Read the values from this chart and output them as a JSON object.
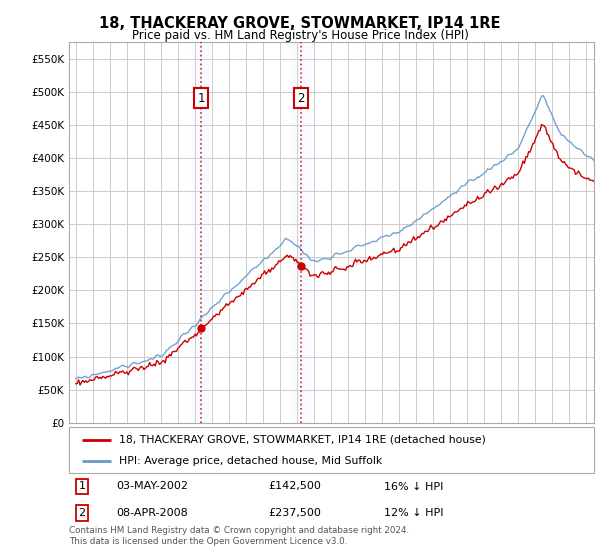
{
  "title": "18, THACKERAY GROVE, STOWMARKET, IP14 1RE",
  "subtitle": "Price paid vs. HM Land Registry's House Price Index (HPI)",
  "ylim": [
    0,
    575000
  ],
  "yticks": [
    0,
    50000,
    100000,
    150000,
    200000,
    250000,
    300000,
    350000,
    400000,
    450000,
    500000,
    550000
  ],
  "line1_label": "18, THACKERAY GROVE, STOWMARKET, IP14 1RE (detached house)",
  "line2_label": "HPI: Average price, detached house, Mid Suffolk",
  "line1_color": "#cc0000",
  "line2_color": "#6699cc",
  "sale1_yr": 2002.37,
  "sale1_price": 142500,
  "sale2_yr": 2008.27,
  "sale2_price": 237500,
  "ann1_date": "03-MAY-2002",
  "ann1_price": "£142,500",
  "ann1_hpi": "16% ↓ HPI",
  "ann2_date": "08-APR-2008",
  "ann2_price": "£237,500",
  "ann2_hpi": "12% ↓ HPI",
  "footer": "Contains HM Land Registry data © Crown copyright and database right 2024.\nThis data is licensed under the Open Government Licence v3.0.",
  "background_color": "#ffffff",
  "grid_color": "#cccccc",
  "shade_color": "#ddeeff",
  "xstart": 1995,
  "xend": 2025
}
